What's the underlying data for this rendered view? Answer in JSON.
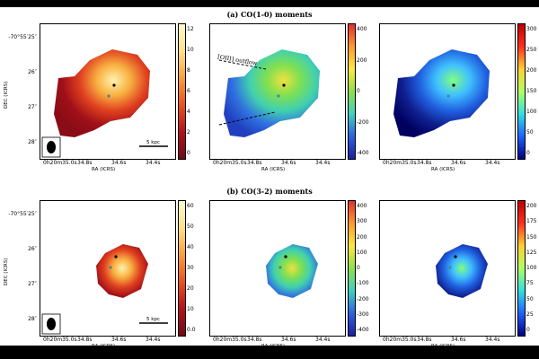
{
  "rows": [
    {
      "title": "(a) CO(1-0) moments",
      "panels": [
        {
          "name": "moment0",
          "colorbar": {
            "ticks": [
              "12",
              "10",
              "8",
              "6",
              "4",
              "2",
              "0"
            ],
            "palette": "heat"
          },
          "scalebar_label": "5 kpc",
          "beam": true
        },
        {
          "name": "moment1",
          "colorbar": {
            "ticks": [
              "400",
              "200",
              "0",
              "-200",
              "-400"
            ],
            "palette": "rainbow"
          },
          "annotation": "[OIII] outflow"
        },
        {
          "name": "moment2",
          "colorbar": {
            "ticks": [
              "300",
              "250",
              "200",
              "150",
              "100",
              "50",
              "0"
            ],
            "palette": "jet"
          }
        }
      ]
    },
    {
      "title": "(b) CO(3-2) moments",
      "panels": [
        {
          "name": "moment0",
          "colorbar": {
            "ticks": [
              "60",
              "50",
              "40",
              "30",
              "20",
              "10",
              "0.0"
            ],
            "palette": "heat"
          },
          "scalebar_label": "5 kpc",
          "beam": true
        },
        {
          "name": "moment1",
          "colorbar": {
            "ticks": [
              "400",
              "300",
              "200",
              "100",
              "0",
              "-100",
              "-200",
              "-300",
              "-400"
            ],
            "palette": "rainbow"
          }
        },
        {
          "name": "moment2",
          "colorbar": {
            "ticks": [
              "200",
              "175",
              "150",
              "125",
              "100",
              "75",
              "50",
              "25",
              "0"
            ],
            "palette": "jet"
          }
        }
      ]
    }
  ],
  "axes": {
    "ylabel": "DEC (ICRS)",
    "xlabel": "RA (ICRS)",
    "yticks": [
      "-70°55′25″",
      "26″",
      "27″",
      "28″"
    ],
    "xticks": [
      "0h20m35.0s",
      "34.8s",
      "34.6s",
      "34.4s"
    ]
  }
}
